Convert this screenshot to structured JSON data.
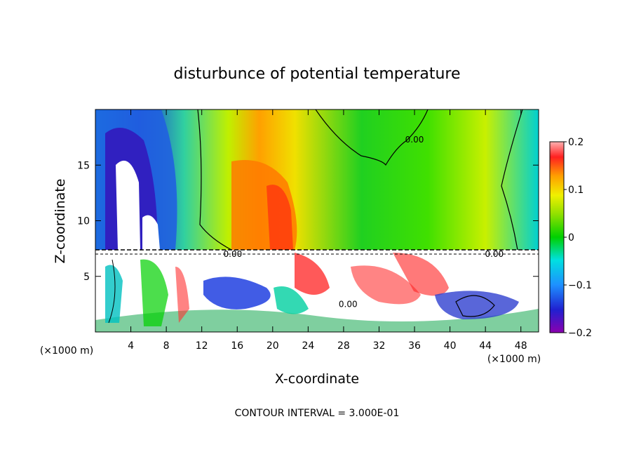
{
  "chart_data": {
    "type": "heatmap",
    "title": "disturbunce of potential temperature",
    "xlabel": "X-coordinate",
    "ylabel": "Z-coordinate",
    "x_unit_left": "(×1000 m)",
    "x_unit_right": "(×1000 m)",
    "x_ticks": [
      4,
      8,
      12,
      16,
      20,
      24,
      28,
      32,
      36,
      40,
      44,
      48
    ],
    "y_ticks": [
      5,
      10,
      15
    ],
    "xlim": [
      0,
      50
    ],
    "ylim": [
      0,
      20
    ],
    "colorbar": {
      "min": -0.2,
      "max": 0.2,
      "ticks": [
        {
          "value": 0.2,
          "label": "0.2"
        },
        {
          "value": 0.1,
          "label": "0.1"
        },
        {
          "value": 0,
          "label": "0"
        },
        {
          "value": -0.1,
          "label": "−0.1"
        },
        {
          "value": -0.2,
          "label": "−0.2"
        }
      ]
    },
    "contour_labels": [
      {
        "text": "0.00",
        "x": 15.5,
        "y": 7.0
      },
      {
        "text": "0.00",
        "x": 45.0,
        "y": 7.0
      },
      {
        "text": "0.00",
        "x": 36.0,
        "y": 17.3
      },
      {
        "text": "0.00",
        "x": 28.5,
        "y": 2.5
      }
    ],
    "footer": "CONTOUR INTERVAL = 3.000E-01"
  }
}
